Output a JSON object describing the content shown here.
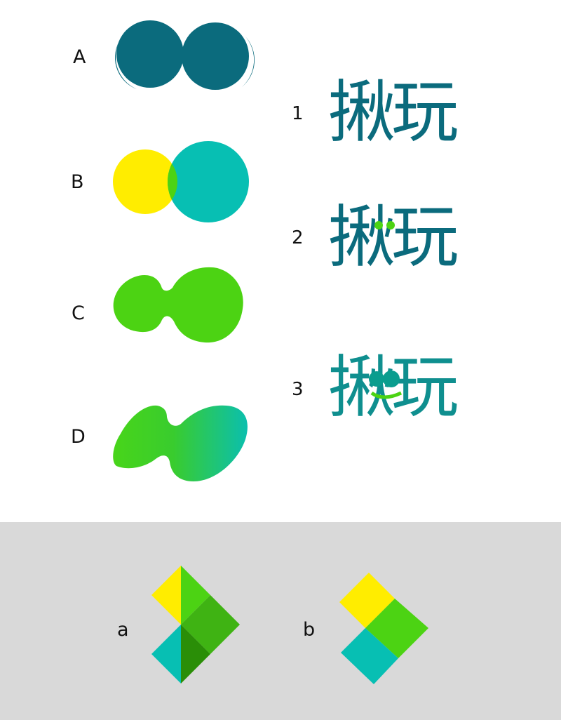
{
  "shape_labels": [
    "A",
    "B",
    "C",
    "D"
  ],
  "logo_labels": [
    "1",
    "2",
    "3"
  ],
  "logo_text": "揪玩",
  "diamond_labels": [
    "a",
    "b"
  ],
  "colors": {
    "dark_teal": "#0b6b7d",
    "teal": "#07bfb3",
    "yellow": "#ffed00",
    "green": "#4cd313",
    "mid_green": "#3fb313",
    "dark_green": "#2a8e07",
    "bottom_bg": "#d9d9d9"
  }
}
